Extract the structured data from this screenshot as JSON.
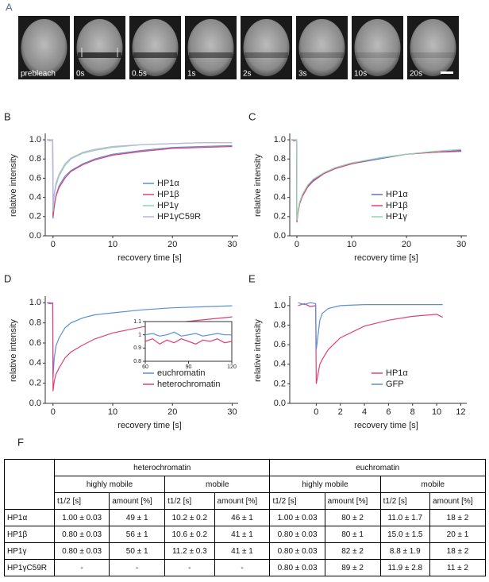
{
  "panel_labels": [
    "A",
    "B",
    "C",
    "D",
    "E",
    "F"
  ],
  "image_frames": [
    "prebleach",
    "0s",
    "0.5s",
    "1s",
    "2s",
    "3s",
    "10s",
    "20s"
  ],
  "chart_data": [
    {
      "type": "line",
      "x_label": "recovery time [s]",
      "y_label": "relative intensity",
      "x": [
        -1,
        -0.5,
        -0.05,
        0,
        0.2,
        0.5,
        1,
        2,
        3,
        5,
        7,
        10,
        15,
        20,
        25,
        30
      ],
      "xlim": [
        -1.3,
        31
      ],
      "xticks": [
        0,
        10,
        20,
        30
      ],
      "ylim": [
        0,
        1.05
      ],
      "yticks": [
        {
          "value": 0,
          "label": "0.0"
        },
        0.2,
        0.4,
        0.6,
        0.8,
        {
          "value": 1,
          "label": "1.0"
        }
      ],
      "legend": "lower right",
      "series": [
        {
          "name": "HP1α",
          "color": "#5b8fd6",
          "values": [
            1.0,
            0.99,
            1.0,
            0.18,
            0.3,
            0.42,
            0.52,
            0.62,
            0.68,
            0.75,
            0.8,
            0.85,
            0.89,
            0.92,
            0.93,
            0.94
          ]
        },
        {
          "name": "HP1β",
          "color": "#e0407a",
          "values": [
            1.0,
            1.0,
            0.99,
            0.2,
            0.31,
            0.41,
            0.5,
            0.6,
            0.67,
            0.74,
            0.79,
            0.84,
            0.88,
            0.91,
            0.92,
            0.93
          ]
        },
        {
          "name": "HP1γ",
          "color": "#8fd6b0",
          "values": [
            1.0,
            1.0,
            1.0,
            0.25,
            0.42,
            0.52,
            0.62,
            0.73,
            0.8,
            0.86,
            0.89,
            0.92,
            0.95,
            0.96,
            0.97,
            0.97
          ]
        },
        {
          "name": "HP1γC59R",
          "color": "#b9b3e0",
          "values": [
            1.0,
            0.99,
            1.0,
            0.3,
            0.44,
            0.55,
            0.64,
            0.75,
            0.81,
            0.87,
            0.9,
            0.93,
            0.95,
            0.96,
            0.97,
            0.97
          ]
        }
      ]
    },
    {
      "type": "line",
      "x_label": "recovery time [s]",
      "y_label": "relative intensity",
      "x": [
        -1,
        -0.5,
        -0.05,
        0,
        0.2,
        0.5,
        1,
        2,
        3,
        5,
        7,
        10,
        15,
        20,
        25,
        30
      ],
      "xlim": [
        -1.3,
        31
      ],
      "xticks": [
        0,
        10,
        20,
        30
      ],
      "ylim": [
        0,
        1.05
      ],
      "yticks": [
        {
          "value": 0,
          "label": "0.0"
        },
        0.2,
        0.4,
        0.6,
        0.8,
        {
          "value": 1,
          "label": "1.0"
        }
      ],
      "legend": "lower right",
      "series": [
        {
          "name": "HP1α",
          "color": "#5b6fd6",
          "values": [
            1.0,
            1.0,
            0.99,
            0.15,
            0.25,
            0.34,
            0.42,
            0.52,
            0.58,
            0.65,
            0.7,
            0.75,
            0.8,
            0.85,
            0.87,
            0.89
          ]
        },
        {
          "name": "HP1β",
          "color": "#e0407a",
          "values": [
            1.0,
            0.99,
            1.0,
            0.14,
            0.24,
            0.33,
            0.41,
            0.51,
            0.57,
            0.65,
            0.7,
            0.75,
            0.81,
            0.85,
            0.87,
            0.88
          ]
        },
        {
          "name": "HP1γ",
          "color": "#8fd6b0",
          "values": [
            1.0,
            1.0,
            1.0,
            0.16,
            0.26,
            0.35,
            0.43,
            0.53,
            0.59,
            0.66,
            0.71,
            0.76,
            0.81,
            0.85,
            0.88,
            0.9
          ]
        }
      ]
    },
    {
      "type": "line",
      "x_label": "recovery time [s]",
      "y_label": "relative intensity",
      "x": [
        -1,
        -0.5,
        -0.05,
        0,
        0.2,
        0.5,
        1,
        2,
        3,
        5,
        7,
        10,
        15,
        20,
        25,
        30
      ],
      "xlim": [
        -1.3,
        31
      ],
      "xticks": [
        0,
        10,
        20,
        30
      ],
      "ylim": [
        0,
        1.05
      ],
      "yticks": [
        {
          "value": 0,
          "label": "0.0"
        },
        0.2,
        0.4,
        0.6,
        0.8,
        {
          "value": 1,
          "label": "1.0"
        }
      ],
      "legend": "lower right",
      "series": [
        {
          "name": "euchromatin",
          "color": "#5b8fd6",
          "values": [
            1.0,
            0.99,
            1.0,
            0.25,
            0.45,
            0.57,
            0.65,
            0.75,
            0.8,
            0.85,
            0.88,
            0.9,
            0.93,
            0.95,
            0.96,
            0.97
          ]
        },
        {
          "name": "heterochromatin",
          "color": "#e0407a",
          "values": [
            1.0,
            1.0,
            0.99,
            0.12,
            0.22,
            0.29,
            0.35,
            0.45,
            0.51,
            0.58,
            0.64,
            0.7,
            0.76,
            0.8,
            0.83,
            0.86
          ]
        }
      ]
    },
    {
      "type": "line",
      "x": [
        60,
        65,
        70,
        75,
        80,
        85,
        90,
        95,
        100,
        105,
        110,
        115,
        120
      ],
      "xlim": [
        60,
        120
      ],
      "xticks": [
        60,
        90,
        120
      ],
      "ylim": [
        0.8,
        1.1
      ],
      "yticks": [
        0.8,
        0.9,
        1,
        1.1
      ],
      "series": [
        {
          "color": "#5b8fd6",
          "values": [
            1.0,
            1.01,
            0.99,
            1.0,
            1.02,
            0.99,
            1.0,
            1.01,
            0.99,
            1.0,
            1.01,
            1.0,
            1.0
          ]
        },
        {
          "color": "#e0407a",
          "values": [
            0.95,
            0.97,
            0.93,
            0.96,
            0.94,
            0.97,
            0.95,
            0.93,
            0.96,
            0.95,
            0.97,
            0.94,
            0.95
          ]
        }
      ]
    },
    {
      "type": "line",
      "x_label": "recovery time [s]",
      "y_label": "relative intensity",
      "x": [
        -1.5,
        -1,
        -0.5,
        -0.05,
        0,
        0.3,
        0.5,
        1,
        2,
        4,
        6,
        8,
        10,
        10.5
      ],
      "xlim": [
        -2.2,
        12.5
      ],
      "xticks": [
        0,
        2,
        4,
        6,
        8,
        10,
        12
      ],
      "ylim": [
        0,
        1.08
      ],
      "yticks": [
        {
          "value": 0,
          "label": "0.0"
        },
        0.2,
        0.4,
        0.6,
        0.8,
        {
          "value": 1,
          "label": "1.0"
        }
      ],
      "legend": "lower right",
      "series": [
        {
          "name": "HP1α",
          "color": "#e0407a",
          "values": [
            1.0,
            1.02,
            0.99,
            1.0,
            0.2,
            0.4,
            0.45,
            0.55,
            0.67,
            0.79,
            0.85,
            0.89,
            0.91,
            0.88
          ]
        },
        {
          "name": "GFP",
          "color": "#5b8fd6",
          "values": [
            1.03,
            1.01,
            1.03,
            1.02,
            0.55,
            0.85,
            0.92,
            0.97,
            1.0,
            1.01,
            1.01,
            1.01,
            1.01,
            1.01
          ]
        }
      ]
    }
  ],
  "table": {
    "groups": [
      "heterochromatin",
      "euchromatin"
    ],
    "subgroups": [
      "highly mobile",
      "mobile",
      "highly mobile",
      "mobile"
    ],
    "columns": [
      "t1/2 [s]",
      "amount [%]",
      "t1/2 [s]",
      "amount [%]",
      "t1/2 [s]",
      "amount [%]",
      "t1/2 [s]",
      "amount [%]"
    ],
    "rows": [
      [
        "HP1α",
        "1.00 ± 0.03",
        "49 ± 1",
        "10.2 ± 0.2",
        "46 ± 1",
        "1.00 ± 0.03",
        "80 ± 2",
        "11.0 ± 1.7",
        "18 ± 2"
      ],
      [
        "HP1β",
        "0.80 ± 0.03",
        "56 ± 1",
        "10.6 ± 0.2",
        "41 ± 1",
        "0.80 ± 0.03",
        "80 ± 1",
        "15.0 ± 1.5",
        "20 ± 1"
      ],
      [
        "HP1γ",
        "0.80 ± 0.03",
        "50 ± 1",
        "11.2 ± 0.3",
        "41 ± 1",
        "0.80 ± 0.03",
        "82 ± 2",
        "8.8 ± 1.9",
        "18 ± 2"
      ],
      [
        "HP1γC59R",
        "-",
        "-",
        "-",
        "-",
        "0.80 ± 0.03",
        "89 ± 2",
        "11.9 ± 2.8",
        "11 ± 2"
      ]
    ]
  }
}
